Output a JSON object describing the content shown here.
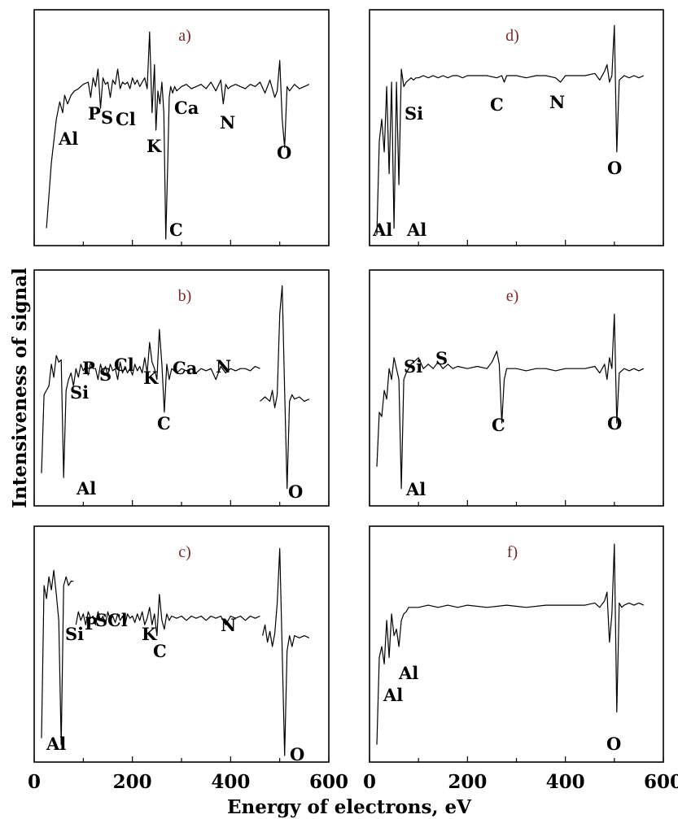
{
  "figure": {
    "x_axis_title": "Energy of electrons, eV",
    "y_axis_title": "Intensiveness of signal",
    "x_ticks": [
      "0",
      "200",
      "400",
      "600"
    ],
    "xlim": [
      0,
      600
    ],
    "line_color": "#000000",
    "title_color": "#7a2a2a"
  },
  "chart_data": [
    {
      "type": "line",
      "title": "a)",
      "column": "left",
      "row": 1,
      "xlim": [
        0,
        600
      ],
      "x": [
        25,
        35,
        45,
        52,
        58,
        62,
        68,
        75,
        82,
        90,
        100,
        110,
        115,
        120,
        125,
        130,
        135,
        140,
        145,
        150,
        155,
        160,
        165,
        170,
        175,
        180,
        185,
        190,
        195,
        200,
        205,
        210,
        215,
        220,
        225,
        230,
        235,
        240,
        245,
        248,
        252,
        256,
        260,
        264,
        268,
        272,
        275,
        278,
        282,
        286,
        290,
        295,
        300,
        310,
        320,
        330,
        340,
        350,
        360,
        370,
        380,
        385,
        390,
        395,
        400,
        410,
        420,
        430,
        440,
        450,
        460,
        470,
        480,
        490,
        495,
        500,
        505,
        510,
        515,
        520,
        530,
        540,
        550,
        560
      ],
      "y": [
        0.05,
        0.35,
        0.55,
        0.63,
        0.58,
        0.66,
        0.62,
        0.66,
        0.68,
        0.69,
        0.71,
        0.72,
        0.65,
        0.74,
        0.7,
        0.78,
        0.6,
        0.74,
        0.71,
        0.72,
        0.65,
        0.73,
        0.71,
        0.78,
        0.69,
        0.72,
        0.71,
        0.72,
        0.69,
        0.74,
        0.71,
        0.73,
        0.7,
        0.72,
        0.74,
        0.69,
        0.95,
        0.58,
        0.8,
        0.5,
        0.68,
        0.62,
        0.72,
        0.58,
        0.0,
        0.35,
        0.65,
        0.7,
        0.67,
        0.7,
        0.68,
        0.69,
        0.7,
        0.71,
        0.69,
        0.7,
        0.71,
        0.69,
        0.72,
        0.68,
        0.73,
        0.62,
        0.71,
        0.69,
        0.7,
        0.71,
        0.7,
        0.69,
        0.71,
        0.7,
        0.72,
        0.67,
        0.73,
        0.65,
        0.68,
        0.82,
        0.55,
        0.42,
        0.7,
        0.68,
        0.71,
        0.69,
        0.7,
        0.71
      ],
      "annotations": [
        "Al",
        "P",
        "S",
        "Cl",
        "K",
        "Ca",
        "N",
        "O",
        "C"
      ]
    },
    {
      "type": "line",
      "title": "b)",
      "column": "left",
      "row": 2,
      "xlim": [
        0,
        600
      ],
      "x": [
        15,
        20,
        25,
        30,
        35,
        40,
        45,
        50,
        55,
        60,
        65,
        70,
        75,
        80,
        85,
        90,
        95,
        100,
        105,
        110,
        115,
        120,
        125,
        130,
        135,
        140,
        145,
        150,
        155,
        160,
        165,
        170,
        175,
        180,
        185,
        190,
        195,
        200,
        205,
        210,
        215,
        220,
        225,
        230,
        235,
        240,
        245,
        250,
        255,
        260,
        265,
        270,
        275,
        280,
        290,
        300,
        310,
        320,
        330,
        340,
        350,
        360,
        370,
        380,
        390,
        400,
        410,
        420,
        430,
        440,
        450,
        460
      ],
      "y": [
        0.12,
        0.48,
        0.5,
        0.52,
        0.62,
        0.56,
        0.66,
        0.63,
        0.64,
        0.1,
        0.5,
        0.55,
        0.58,
        0.52,
        0.6,
        0.56,
        0.62,
        0.59,
        0.61,
        0.57,
        0.63,
        0.6,
        0.6,
        0.55,
        0.62,
        0.58,
        0.61,
        0.57,
        0.62,
        0.59,
        0.6,
        0.55,
        0.63,
        0.58,
        0.61,
        0.58,
        0.6,
        0.57,
        0.62,
        0.59,
        0.61,
        0.58,
        0.65,
        0.58,
        0.72,
        0.63,
        0.6,
        0.55,
        0.78,
        0.62,
        0.4,
        0.62,
        0.55,
        0.6,
        0.58,
        0.6,
        0.59,
        0.6,
        0.58,
        0.6,
        0.59,
        0.6,
        0.55,
        0.61,
        0.58,
        0.6,
        0.59,
        0.6,
        0.6,
        0.59,
        0.61,
        0.6
      ],
      "x2": [
        460,
        470,
        480,
        485,
        490,
        495,
        500,
        505,
        510,
        515,
        520,
        525,
        530,
        540,
        550,
        560
      ],
      "y2": [
        0.45,
        0.47,
        0.45,
        0.5,
        0.42,
        0.48,
        0.85,
        0.98,
        0.5,
        0.05,
        0.45,
        0.48,
        0.46,
        0.47,
        0.45,
        0.46
      ],
      "annotations": [
        "Si",
        "P",
        "S",
        "Cl",
        "K",
        "Ca",
        "N",
        "C",
        "Al",
        "O"
      ]
    },
    {
      "type": "line",
      "title": "c)",
      "column": "left",
      "row": 3,
      "xlim": [
        0,
        600
      ],
      "x": [
        15,
        20,
        25,
        30,
        35,
        40,
        45,
        50,
        55,
        60,
        65,
        70,
        75,
        80
      ],
      "y": [
        0.08,
        0.78,
        0.72,
        0.82,
        0.76,
        0.85,
        0.74,
        0.62,
        0.05,
        0.78,
        0.82,
        0.78,
        0.8,
        0.8
      ],
      "x2": [
        85,
        90,
        95,
        100,
        105,
        110,
        115,
        120,
        125,
        130,
        135,
        140,
        145,
        150,
        155,
        160,
        165,
        170,
        175,
        180,
        185,
        190,
        195,
        200,
        205,
        210,
        215,
        220,
        225,
        230,
        235,
        240,
        245,
        250,
        255,
        260,
        265,
        270,
        275,
        280,
        290,
        300,
        310,
        320,
        330,
        340,
        350,
        360,
        370,
        380,
        390,
        400,
        410,
        420,
        430,
        440,
        450,
        460
      ],
      "y2": [
        0.6,
        0.66,
        0.62,
        0.65,
        0.6,
        0.66,
        0.63,
        0.64,
        0.6,
        0.66,
        0.62,
        0.64,
        0.6,
        0.66,
        0.62,
        0.64,
        0.61,
        0.65,
        0.62,
        0.64,
        0.6,
        0.65,
        0.63,
        0.64,
        0.61,
        0.65,
        0.62,
        0.66,
        0.6,
        0.63,
        0.68,
        0.6,
        0.65,
        0.55,
        0.74,
        0.62,
        0.58,
        0.65,
        0.62,
        0.64,
        0.63,
        0.64,
        0.62,
        0.64,
        0.63,
        0.64,
        0.62,
        0.64,
        0.63,
        0.64,
        0.6,
        0.64,
        0.63,
        0.64,
        0.62,
        0.64,
        0.63,
        0.64
      ],
      "x3": [
        465,
        470,
        475,
        480,
        485,
        490,
        495,
        500,
        505,
        510,
        515,
        520,
        525,
        530,
        540,
        550,
        560
      ],
      "y3": [
        0.55,
        0.6,
        0.52,
        0.57,
        0.5,
        0.56,
        0.7,
        0.95,
        0.48,
        0.0,
        0.48,
        0.55,
        0.5,
        0.55,
        0.54,
        0.55,
        0.54
      ],
      "annotations": [
        "Si",
        "P",
        "S",
        "Cl",
        "K",
        "C",
        "N",
        "Al",
        "O"
      ]
    },
    {
      "type": "line",
      "title": "d)",
      "column": "right",
      "row": 1,
      "xlim": [
        0,
        600
      ],
      "x": [
        15,
        20,
        25,
        30,
        35,
        40,
        45,
        50,
        55,
        60,
        65,
        70,
        75,
        80,
        85,
        90,
        95,
        100,
        110,
        120,
        130,
        140,
        150,
        160,
        170,
        180,
        190,
        200,
        220,
        240,
        260,
        270,
        275,
        280,
        300,
        320,
        340,
        360,
        380,
        390,
        400,
        420,
        440,
        460,
        470,
        480,
        485,
        490,
        495,
        500,
        505,
        510,
        515,
        520,
        530,
        540,
        550,
        560
      ],
      "y": [
        0.02,
        0.45,
        0.55,
        0.4,
        0.7,
        0.3,
        0.72,
        0.05,
        0.72,
        0.25,
        0.78,
        0.7,
        0.72,
        0.73,
        0.74,
        0.73,
        0.74,
        0.74,
        0.75,
        0.74,
        0.75,
        0.74,
        0.75,
        0.74,
        0.75,
        0.75,
        0.74,
        0.75,
        0.75,
        0.75,
        0.74,
        0.75,
        0.72,
        0.75,
        0.75,
        0.74,
        0.75,
        0.75,
        0.74,
        0.72,
        0.75,
        0.75,
        0.75,
        0.76,
        0.73,
        0.77,
        0.8,
        0.72,
        0.75,
        0.98,
        0.4,
        0.73,
        0.74,
        0.75,
        0.74,
        0.75,
        0.74,
        0.75
      ],
      "annotations": [
        "Si",
        "C",
        "N",
        "O",
        "Al",
        "Al"
      ]
    },
    {
      "type": "line",
      "title": "e)",
      "column": "right",
      "row": 2,
      "xlim": [
        0,
        600
      ],
      "x": [
        15,
        20,
        25,
        30,
        35,
        40,
        45,
        50,
        55,
        60,
        65,
        70,
        75,
        80,
        85,
        90,
        100,
        110,
        120,
        130,
        140,
        150,
        160,
        170,
        180,
        200,
        220,
        240,
        250,
        260,
        265,
        270,
        275,
        280,
        300,
        320,
        340,
        360,
        380,
        400,
        420,
        440,
        460,
        470,
        480,
        485,
        490,
        495,
        500,
        505,
        510,
        520,
        530,
        540,
        550,
        560
      ],
      "y": [
        0.15,
        0.4,
        0.38,
        0.5,
        0.46,
        0.6,
        0.55,
        0.65,
        0.6,
        0.55,
        0.05,
        0.55,
        0.58,
        0.6,
        0.62,
        0.63,
        0.65,
        0.6,
        0.62,
        0.6,
        0.63,
        0.6,
        0.62,
        0.6,
        0.61,
        0.6,
        0.61,
        0.6,
        0.63,
        0.68,
        0.62,
        0.35,
        0.55,
        0.6,
        0.6,
        0.59,
        0.6,
        0.6,
        0.59,
        0.6,
        0.6,
        0.6,
        0.61,
        0.58,
        0.62,
        0.55,
        0.65,
        0.6,
        0.85,
        0.35,
        0.58,
        0.6,
        0.59,
        0.6,
        0.59,
        0.6
      ],
      "annotations": [
        "Si",
        "S",
        "C",
        "O",
        "Al"
      ]
    },
    {
      "type": "line",
      "title": "f)",
      "column": "right",
      "row": 3,
      "xlim": [
        0,
        600
      ],
      "x": [
        15,
        20,
        25,
        30,
        35,
        40,
        45,
        50,
        55,
        60,
        65,
        70,
        75,
        80,
        90,
        100,
        120,
        140,
        160,
        180,
        200,
        240,
        280,
        320,
        360,
        400,
        440,
        460,
        470,
        480,
        485,
        490,
        495,
        500,
        505,
        510,
        515,
        520,
        530,
        540,
        550,
        560
      ],
      "y": [
        0.05,
        0.45,
        0.5,
        0.42,
        0.62,
        0.45,
        0.65,
        0.55,
        0.58,
        0.5,
        0.62,
        0.65,
        0.66,
        0.68,
        0.68,
        0.68,
        0.69,
        0.68,
        0.69,
        0.68,
        0.69,
        0.68,
        0.69,
        0.68,
        0.69,
        0.69,
        0.69,
        0.7,
        0.68,
        0.71,
        0.75,
        0.52,
        0.65,
        0.97,
        0.2,
        0.7,
        0.68,
        0.69,
        0.7,
        0.69,
        0.7,
        0.69
      ],
      "annotations": [
        "Al",
        "Al",
        "O"
      ]
    }
  ]
}
